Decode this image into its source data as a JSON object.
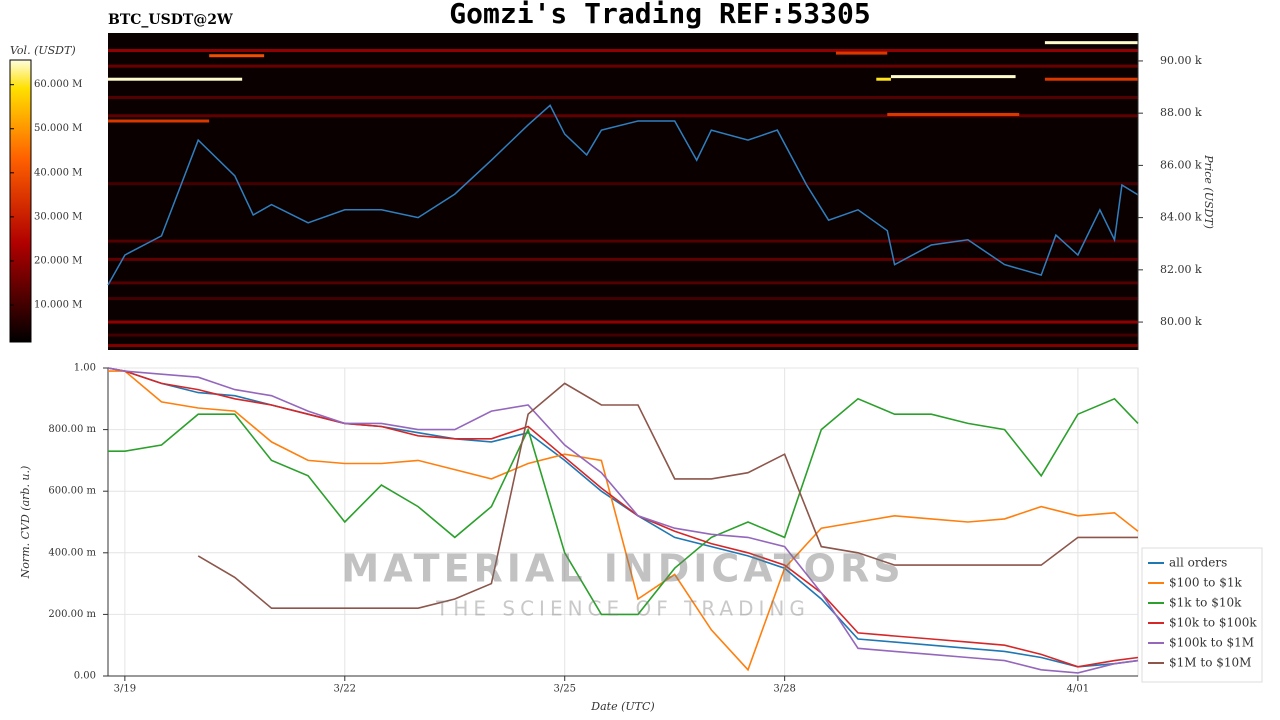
{
  "chart_data": [
    {
      "type": "heatmap",
      "title": "Gomzi's Trading REF:53305",
      "subtitle": "BTC_USDT@2W",
      "colorbar_label": "Vol. (USDT)",
      "ylabel": "Price (USDT)",
      "xlim": [
        -0.23,
        13.82
      ],
      "ylim": [
        78930,
        91070
      ],
      "yticks": [
        {
          "value": 80000,
          "label": "80.00 k"
        },
        {
          "value": 82000,
          "label": "82.00 k"
        },
        {
          "value": 84000,
          "label": "84.00 k"
        },
        {
          "value": 86000,
          "label": "86.00 k"
        },
        {
          "value": 88000,
          "label": "88.00 k"
        },
        {
          "value": 90000,
          "label": "90.00 k"
        }
      ],
      "vlim": [
        1600000,
        65600000
      ],
      "vticks": [
        {
          "value": 10000000,
          "label": "10.000 M"
        },
        {
          "value": 20000000,
          "label": "20.000 M"
        },
        {
          "value": 30000000,
          "label": "30.000 M"
        },
        {
          "value": 40000000,
          "label": "40.000 M"
        },
        {
          "value": 50000000,
          "label": "50.000 M"
        },
        {
          "value": 60000000,
          "label": "60.000 M"
        }
      ],
      "color": "#2f7fc0",
      "x": [
        -0.23,
        0,
        0.5,
        1.0,
        1.5,
        1.75,
        2.0,
        2.5,
        3.0,
        3.5,
        4.0,
        4.5,
        5.0,
        5.5,
        5.8,
        6.0,
        6.3,
        6.5,
        7.0,
        7.5,
        7.8,
        8.0,
        8.5,
        8.9,
        9.3,
        9.6,
        10.0,
        10.4,
        10.5,
        11.0,
        11.5,
        12.0,
        12.5,
        12.7,
        13.0,
        13.3,
        13.5,
        13.6,
        13.82
      ],
      "values": [
        81420,
        82570,
        83300,
        86970,
        85600,
        84100,
        84500,
        83800,
        84300,
        84300,
        84000,
        84900,
        86200,
        87550,
        88300,
        87200,
        86400,
        87350,
        87700,
        87700,
        86200,
        87350,
        86970,
        87350,
        85250,
        83900,
        84300,
        83500,
        82200,
        82950,
        83150,
        82200,
        81800,
        83330,
        82570,
        84300,
        83150,
        85250,
        84870
      ],
      "cells": [
        {
          "x0": -0.23,
          "x1": 13.82,
          "price": 90400,
          "volume": 20000000
        },
        {
          "x0": -0.23,
          "x1": 13.82,
          "price": 89800,
          "volume": 15000000
        },
        {
          "x0": -0.23,
          "x1": 13.82,
          "price": 88600,
          "volume": 12000000
        },
        {
          "x0": -0.23,
          "x1": 13.82,
          "price": 87900,
          "volume": 14000000
        },
        {
          "x0": -0.23,
          "x1": 13.82,
          "price": 85300,
          "volume": 10000000
        },
        {
          "x0": -0.23,
          "x1": 13.82,
          "price": 83100,
          "volume": 12000000
        },
        {
          "x0": -0.23,
          "x1": 13.82,
          "price": 82400,
          "volume": 14000000
        },
        {
          "x0": -0.23,
          "x1": 13.82,
          "price": 81500,
          "volume": 12000000
        },
        {
          "x0": -0.23,
          "x1": 13.82,
          "price": 80900,
          "volume": 10000000
        },
        {
          "x0": -0.23,
          "x1": 13.82,
          "price": 80000,
          "volume": 20000000
        },
        {
          "x0": -0.23,
          "x1": 13.82,
          "price": 79500,
          "volume": 10000000
        },
        {
          "x0": -0.23,
          "x1": 13.82,
          "price": 79100,
          "volume": 18000000
        },
        {
          "x0": -0.23,
          "x1": 1.6,
          "price": 89300,
          "volume": 65000000
        },
        {
          "x0": -0.23,
          "x1": 1.15,
          "price": 87700,
          "volume": 35000000
        },
        {
          "x0": 1.15,
          "x1": 1.9,
          "price": 90200,
          "volume": 40000000
        },
        {
          "x0": 9.7,
          "x1": 10.4,
          "price": 90300,
          "volume": 35000000
        },
        {
          "x0": 10.25,
          "x1": 10.45,
          "price": 89300,
          "volume": 60000000
        },
        {
          "x0": 10.45,
          "x1": 12.15,
          "price": 89400,
          "volume": 65000000
        },
        {
          "x0": 10.4,
          "x1": 12.2,
          "price": 87950,
          "volume": 35000000
        },
        {
          "x0": 12.55,
          "x1": 13.82,
          "price": 90700,
          "volume": 65000000
        },
        {
          "x0": 12.55,
          "x1": 13.82,
          "price": 89300,
          "volume": 35000000
        }
      ]
    },
    {
      "type": "line",
      "xlabel": "Date (UTC)",
      "ylabel": "Norm. CVD (arb. u.)",
      "grid": true,
      "legend": "lower right",
      "watermark": [
        "MATERIAL INDICATORS",
        "THE SCIENCE OF TRADING"
      ],
      "xlim": [
        -0.23,
        13.82
      ],
      "xticks": [
        {
          "value": 0,
          "label": "3/19"
        },
        {
          "value": 3,
          "label": "3/22"
        },
        {
          "value": 6,
          "label": "3/25"
        },
        {
          "value": 9,
          "label": "3/28"
        },
        {
          "value": 13,
          "label": "4/01"
        }
      ],
      "ylim": [
        0,
        1
      ],
      "yticks": [
        {
          "value": 0,
          "label": "0.00"
        },
        {
          "value": 0.2,
          "label": "200.00 m"
        },
        {
          "value": 0.4,
          "label": "400.00 m"
        },
        {
          "value": 0.6,
          "label": "600.00 m"
        },
        {
          "value": 0.8,
          "label": "800.00 m"
        },
        {
          "value": 1,
          "label": "1.00"
        }
      ],
      "x": [
        -0.23,
        0,
        0.5,
        1,
        1.5,
        2,
        2.5,
        3,
        3.5,
        4,
        4.5,
        5,
        5.5,
        6,
        6.5,
        7,
        7.5,
        8,
        8.5,
        9,
        9.5,
        10,
        10.5,
        11,
        11.5,
        12,
        12.5,
        13,
        13.5,
        13.82
      ],
      "series": [
        {
          "name": "all orders",
          "color": "#1f77b4",
          "values": [
            1.0,
            0.99,
            0.95,
            0.92,
            0.91,
            0.88,
            0.85,
            0.82,
            0.81,
            0.79,
            0.77,
            0.76,
            0.79,
            0.7,
            0.6,
            0.52,
            0.45,
            0.42,
            0.39,
            0.35,
            0.25,
            0.12,
            0.11,
            0.1,
            0.09,
            0.08,
            0.06,
            0.03,
            0.04,
            0.05
          ]
        },
        {
          "name": "$100 to $1k",
          "color": "#ff7f0e",
          "values": [
            0.99,
            0.99,
            0.89,
            0.87,
            0.86,
            0.76,
            0.7,
            0.69,
            0.69,
            0.7,
            0.67,
            0.64,
            0.69,
            0.72,
            0.7,
            0.25,
            0.33,
            0.15,
            0.02,
            0.35,
            0.48,
            0.5,
            0.52,
            0.51,
            0.5,
            0.51,
            0.55,
            0.52,
            0.53,
            0.47
          ]
        },
        {
          "name": "$1k to $10k",
          "color": "#2ca02c",
          "values": [
            0.73,
            0.73,
            0.75,
            0.85,
            0.85,
            0.7,
            0.65,
            0.5,
            0.62,
            0.55,
            0.45,
            0.55,
            0.8,
            0.4,
            0.2,
            0.2,
            0.35,
            0.45,
            0.5,
            0.45,
            0.8,
            0.9,
            0.85,
            0.85,
            0.82,
            0.8,
            0.65,
            0.85,
            0.9,
            0.82
          ]
        },
        {
          "name": "$10k to $100k",
          "color": "#d62728",
          "values": [
            1.0,
            0.99,
            0.95,
            0.93,
            0.9,
            0.88,
            0.85,
            0.82,
            0.81,
            0.78,
            0.77,
            0.77,
            0.81,
            0.71,
            0.61,
            0.52,
            0.47,
            0.43,
            0.4,
            0.36,
            0.27,
            0.14,
            0.13,
            0.12,
            0.11,
            0.1,
            0.07,
            0.03,
            0.05,
            0.06
          ]
        },
        {
          "name": "$100k to $1M",
          "color": "#9467bd",
          "values": [
            1.0,
            0.99,
            0.98,
            0.97,
            0.93,
            0.91,
            0.86,
            0.82,
            0.82,
            0.8,
            0.8,
            0.86,
            0.88,
            0.75,
            0.66,
            0.52,
            0.48,
            0.46,
            0.45,
            0.42,
            0.27,
            0.09,
            0.08,
            0.07,
            0.06,
            0.05,
            0.02,
            0.01,
            0.04,
            0.05
          ]
        },
        {
          "name": "$1M to $10M",
          "color": "#8c564b",
          "values": [
            null,
            null,
            null,
            0.39,
            0.32,
            0.22,
            0.22,
            0.22,
            0.22,
            0.22,
            0.25,
            0.3,
            0.85,
            0.95,
            0.88,
            0.88,
            0.64,
            0.64,
            0.66,
            0.72,
            0.42,
            0.4,
            0.36,
            0.36,
            0.36,
            0.36,
            0.36,
            0.45,
            0.45,
            0.45
          ]
        }
      ]
    }
  ]
}
